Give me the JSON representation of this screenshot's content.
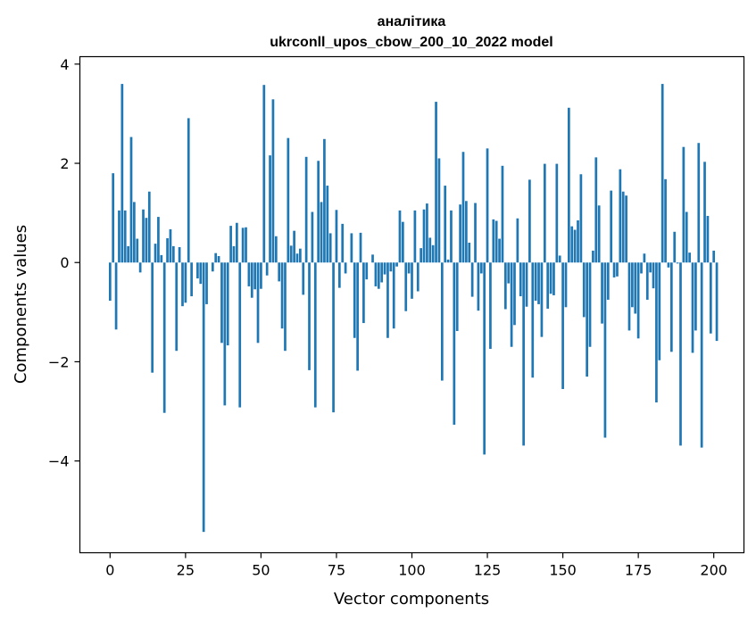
{
  "chart_data": {
    "type": "bar",
    "title": "аналітика",
    "subtitle": "ukrconll_upos_cbow_200_10_2022 model",
    "xlabel": "Vector components",
    "ylabel": "Components values",
    "xlim": [
      -10,
      210
    ],
    "ylim": [
      -5.85,
      4.15
    ],
    "xticks": [
      0,
      25,
      50,
      75,
      100,
      125,
      150,
      175,
      200
    ],
    "yticks": [
      -4,
      -2,
      0,
      2,
      4
    ],
    "ytick_labels": [
      "−4",
      "−2",
      "0",
      "2",
      "4"
    ],
    "grid": false,
    "color": "#1f77b4",
    "values": [
      -0.77,
      1.8,
      -1.35,
      1.05,
      3.6,
      1.05,
      0.33,
      2.53,
      1.22,
      0.48,
      -0.2,
      1.07,
      0.9,
      1.43,
      -2.22,
      0.38,
      0.92,
      0.15,
      -3.03,
      0.49,
      0.67,
      0.33,
      -1.78,
      0.31,
      -0.88,
      -0.81,
      2.91,
      -0.68,
      0.0,
      -0.32,
      -0.43,
      -5.43,
      -0.84,
      0.0,
      -0.18,
      0.19,
      0.13,
      -1.62,
      -2.88,
      -1.67,
      0.74,
      0.33,
      0.8,
      -2.92,
      0.7,
      0.71,
      -0.48,
      -0.71,
      -0.54,
      -1.62,
      -0.53,
      3.58,
      -0.26,
      2.16,
      3.29,
      0.53,
      -0.38,
      -1.33,
      -1.78,
      2.51,
      0.34,
      0.64,
      0.18,
      0.28,
      -0.65,
      2.13,
      -2.17,
      1.02,
      -2.92,
      2.05,
      1.22,
      2.49,
      1.55,
      0.59,
      -3.02,
      1.06,
      -0.51,
      0.78,
      -0.22,
      0.0,
      0.59,
      -1.52,
      -2.18,
      0.6,
      -1.22,
      -0.34,
      0.0,
      0.16,
      -0.48,
      -0.53,
      -0.4,
      -0.24,
      -1.52,
      -0.18,
      -1.33,
      -0.08,
      1.05,
      0.82,
      -0.98,
      -0.22,
      -0.73,
      1.05,
      -0.58,
      0.29,
      1.07,
      1.19,
      0.5,
      0.35,
      3.24,
      2.1,
      -2.38,
      1.55,
      0.06,
      1.05,
      -3.27,
      -1.38,
      1.17,
      2.23,
      1.24,
      0.4,
      -0.69,
      1.2,
      -0.97,
      -0.22,
      -3.87,
      2.3,
      -1.74,
      0.87,
      0.84,
      0.48,
      1.95,
      -0.94,
      -0.42,
      -1.7,
      -1.26,
      0.89,
      -0.68,
      -3.69,
      -0.89,
      1.67,
      -2.32,
      -0.77,
      -0.84,
      -1.5,
      1.99,
      -0.93,
      -0.63,
      -0.66,
      1.99,
      0.14,
      -2.55,
      -0.9,
      3.12,
      0.73,
      0.66,
      0.85,
      1.78,
      -1.1,
      -2.3,
      -1.7,
      0.24,
      2.12,
      1.15,
      -1.23,
      -3.53,
      -0.75,
      1.45,
      -0.3,
      -0.28,
      1.88,
      1.43,
      1.35,
      -1.37,
      -0.9,
      -1.03,
      -1.53,
      -0.22,
      0.18,
      -0.75,
      -0.2,
      -0.52,
      -2.82,
      -1.97,
      3.6,
      1.68,
      -0.1,
      -1.8,
      0.62,
      -0.02,
      -3.69,
      2.33,
      1.02,
      0.2,
      -1.82,
      -1.37,
      2.41,
      -3.73,
      2.03,
      0.94,
      -1.43,
      0.24,
      -1.58
    ]
  }
}
